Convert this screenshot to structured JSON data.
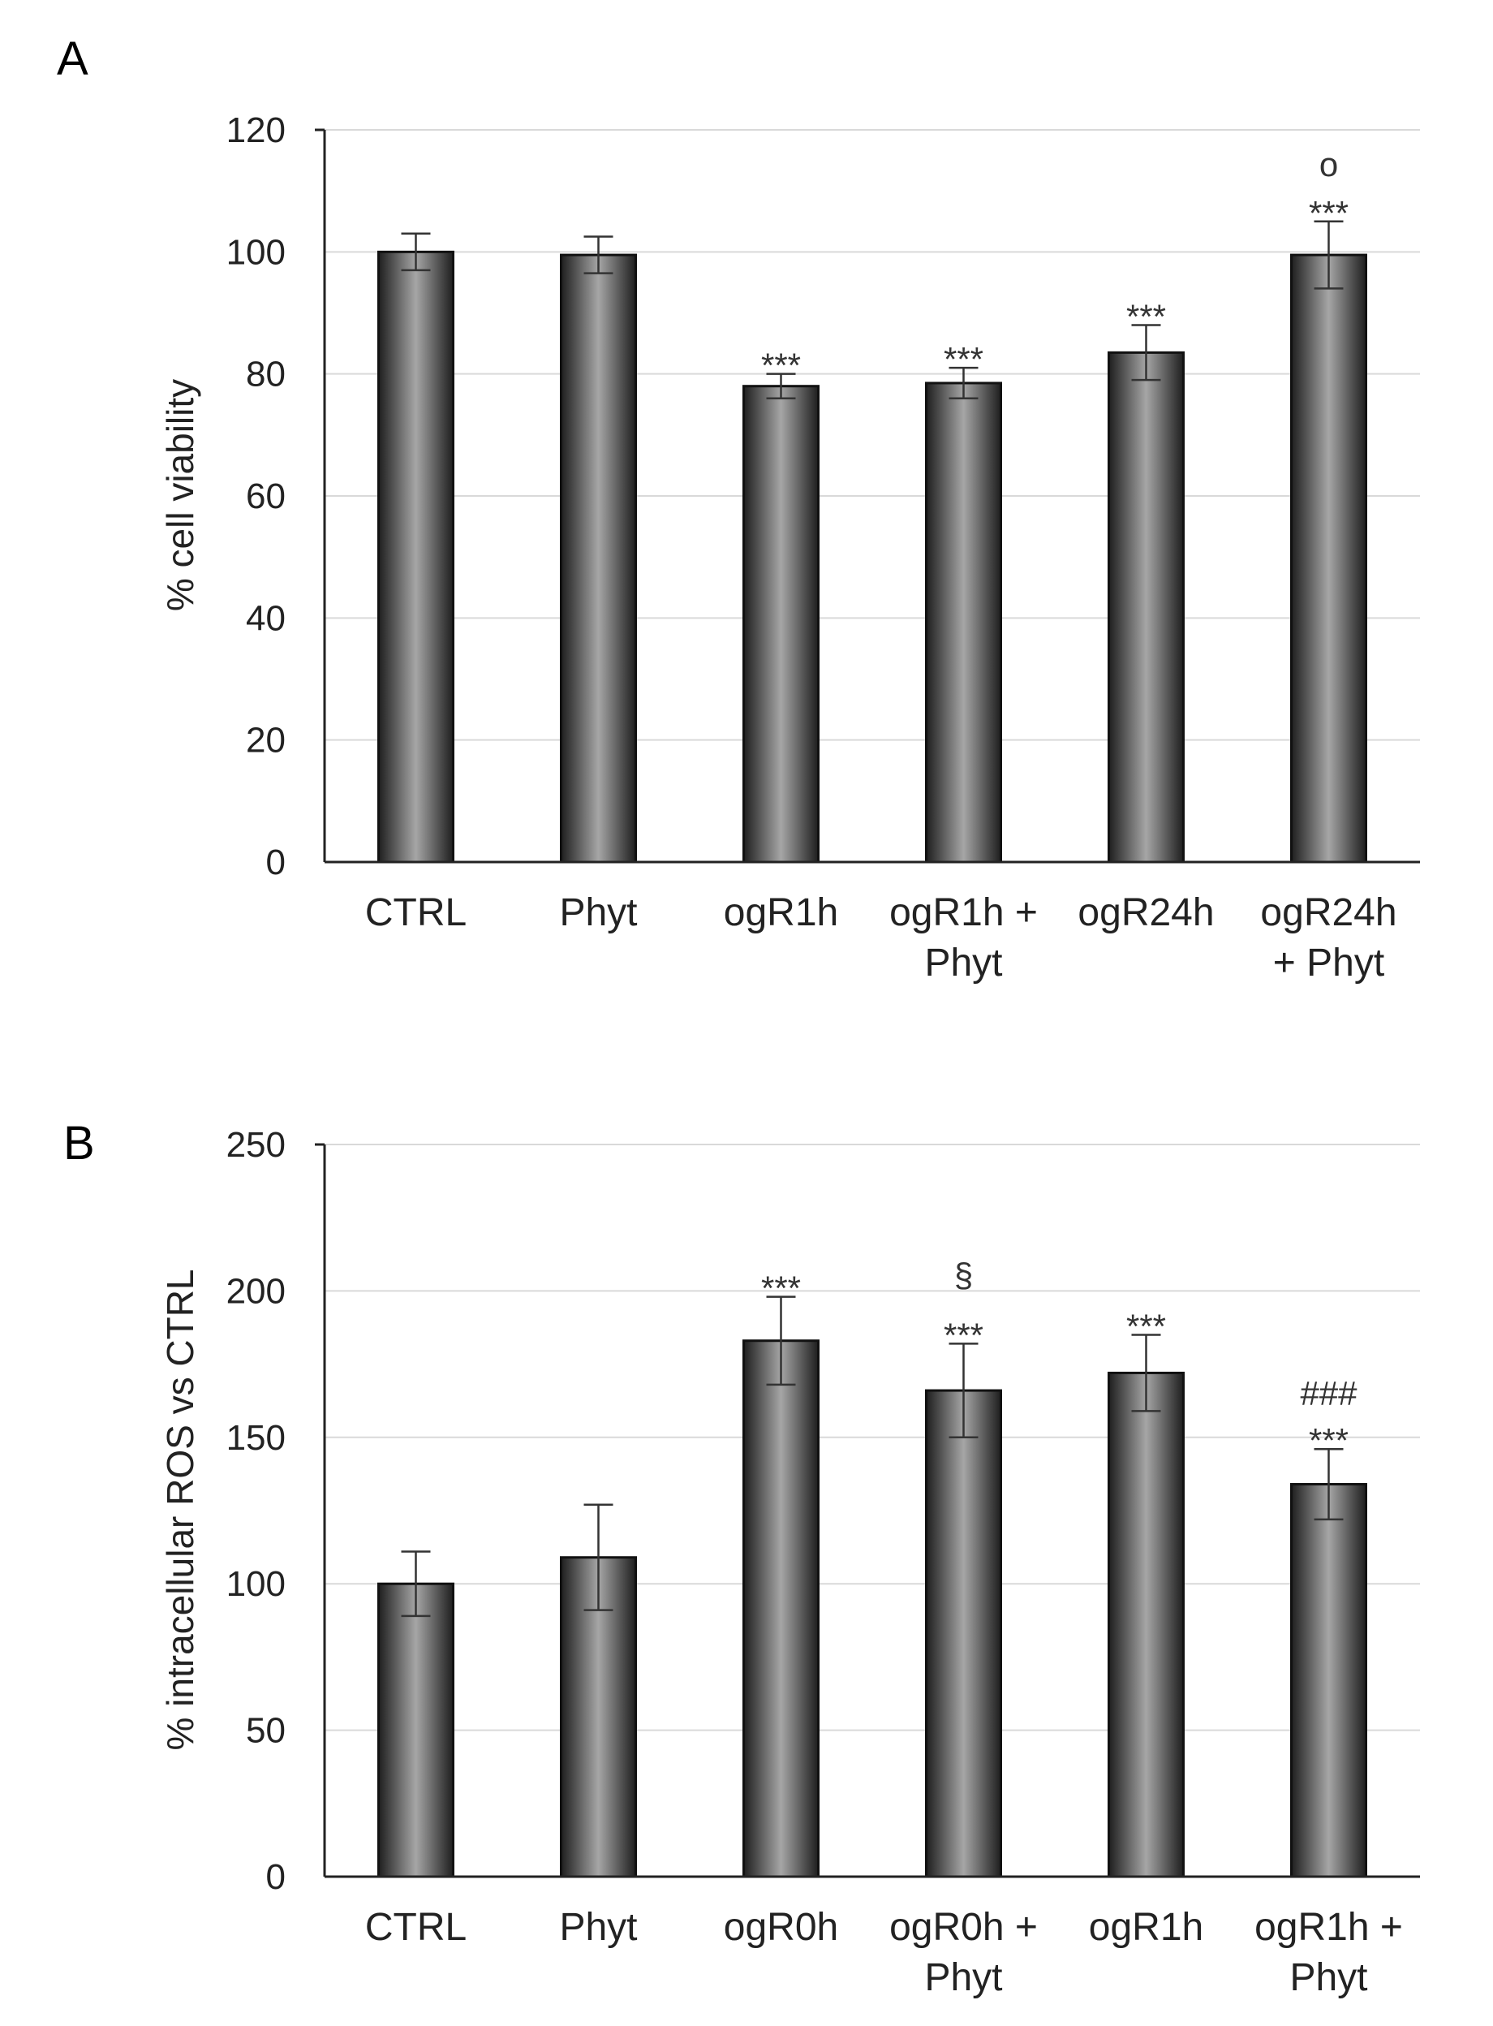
{
  "figure": {
    "colors": {
      "bar_dark": "#1e1e1e",
      "bar_light": "#a6a6a6",
      "grid": "#d9d9d9",
      "axis": "#222222"
    }
  },
  "chart_data": [
    {
      "panel_label": "A",
      "type": "bar",
      "title": "",
      "xlabel": "",
      "ylabel": "% cell viability",
      "ylim": [
        0,
        120
      ],
      "yticks": [
        0,
        20,
        40,
        60,
        80,
        100,
        120
      ],
      "grid": true,
      "categories": [
        [
          "CTRL"
        ],
        [
          "Phyt"
        ],
        [
          "ogR1h"
        ],
        [
          "ogR1h +",
          "Phyt"
        ],
        [
          "ogR24h"
        ],
        [
          "ogR24h",
          "+ Phyt"
        ]
      ],
      "values": [
        100,
        99.5,
        78,
        78.5,
        83.5,
        99.5
      ],
      "errors": [
        3,
        3,
        2,
        2.5,
        4.5,
        5.5
      ],
      "annotations": [
        [],
        [],
        [
          "***"
        ],
        [
          "***"
        ],
        [
          "***"
        ],
        [
          "***",
          "o"
        ]
      ]
    },
    {
      "panel_label": "B",
      "type": "bar",
      "title": "",
      "xlabel": "",
      "ylabel": "% intracellular ROS vs CTRL",
      "ylim": [
        0,
        250
      ],
      "yticks": [
        0,
        50,
        100,
        150,
        200,
        250
      ],
      "grid": true,
      "categories": [
        [
          "CTRL"
        ],
        [
          "Phyt"
        ],
        [
          "ogR0h"
        ],
        [
          "ogR0h +",
          "Phyt"
        ],
        [
          "ogR1h"
        ],
        [
          "ogR1h +",
          "Phyt"
        ]
      ],
      "values": [
        100,
        109,
        183,
        166,
        172,
        134
      ],
      "errors": [
        11,
        18,
        15,
        16,
        13,
        12
      ],
      "annotations": [
        [],
        [],
        [
          "***"
        ],
        [
          "***",
          "§"
        ],
        [
          "***"
        ],
        [
          "***",
          "###"
        ]
      ]
    }
  ]
}
